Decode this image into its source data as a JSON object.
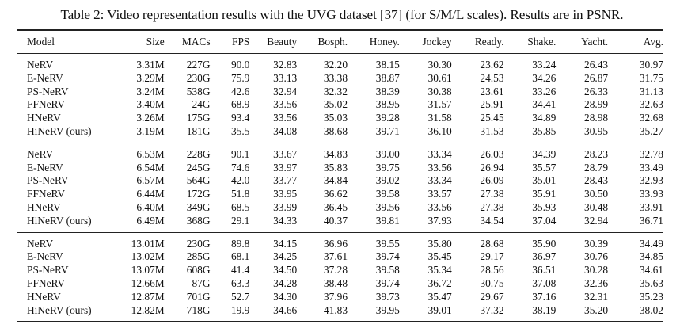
{
  "caption": "Table 2: Video representation results with the UVG dataset [37] (for S/M/L scales). Results are in PSNR.",
  "table": {
    "columns": [
      "Model",
      "Size",
      "MACs",
      "FPS",
      "Beauty",
      "Bosph.",
      "Honey.",
      "Jockey",
      "Ready.",
      "Shake.",
      "Yacht.",
      "Avg."
    ],
    "groups": [
      {
        "scale": "S",
        "rows": [
          [
            "NeRV",
            "3.31M",
            "227G",
            "90.0",
            "32.83",
            "32.20",
            "38.15",
            "30.30",
            "23.62",
            "33.24",
            "26.43",
            "30.97"
          ],
          [
            "E-NeRV",
            "3.29M",
            "230G",
            "75.9",
            "33.13",
            "33.38",
            "38.87",
            "30.61",
            "24.53",
            "34.26",
            "26.87",
            "31.75"
          ],
          [
            "PS-NeRV",
            "3.24M",
            "538G",
            "42.6",
            "32.94",
            "32.32",
            "38.39",
            "30.38",
            "23.61",
            "33.26",
            "26.33",
            "31.13"
          ],
          [
            "FFNeRV",
            "3.40M",
            "24G",
            "68.9",
            "33.56",
            "35.02",
            "38.95",
            "31.57",
            "25.91",
            "34.41",
            "28.99",
            "32.63"
          ],
          [
            "HNeRV",
            "3.26M",
            "175G",
            "93.4",
            "33.56",
            "35.03",
            "39.28",
            "31.58",
            "25.45",
            "34.89",
            "28.98",
            "32.68"
          ],
          [
            "HiNeRV (ours)",
            "3.19M",
            "181G",
            "35.5",
            "34.08",
            "38.68",
            "39.71",
            "36.10",
            "31.53",
            "35.85",
            "30.95",
            "35.27"
          ]
        ]
      },
      {
        "scale": "M",
        "rows": [
          [
            "NeRV",
            "6.53M",
            "228G",
            "90.1",
            "33.67",
            "34.83",
            "39.00",
            "33.34",
            "26.03",
            "34.39",
            "28.23",
            "32.78"
          ],
          [
            "E-NeRV",
            "6.54M",
            "245G",
            "74.6",
            "33.97",
            "35.83",
            "39.75",
            "33.56",
            "26.94",
            "35.57",
            "28.79",
            "33.49"
          ],
          [
            "PS-NeRV",
            "6.57M",
            "564G",
            "42.0",
            "33.77",
            "34.84",
            "39.02",
            "33.34",
            "26.09",
            "35.01",
            "28.43",
            "32.93"
          ],
          [
            "FFNeRV",
            "6.44M",
            "172G",
            "51.8",
            "33.95",
            "36.62",
            "39.58",
            "33.57",
            "27.38",
            "35.91",
            "30.50",
            "33.93"
          ],
          [
            "HNeRV",
            "6.40M",
            "349G",
            "68.5",
            "33.99",
            "36.45",
            "39.56",
            "33.56",
            "27.38",
            "35.93",
            "30.48",
            "33.91"
          ],
          [
            "HiNeRV (ours)",
            "6.49M",
            "368G",
            "29.1",
            "34.33",
            "40.37",
            "39.81",
            "37.93",
            "34.54",
            "37.04",
            "32.94",
            "36.71"
          ]
        ]
      },
      {
        "scale": "L",
        "rows": [
          [
            "NeRV",
            "13.01M",
            "230G",
            "89.8",
            "34.15",
            "36.96",
            "39.55",
            "35.80",
            "28.68",
            "35.90",
            "30.39",
            "34.49"
          ],
          [
            "E-NeRV",
            "13.02M",
            "285G",
            "68.1",
            "34.25",
            "37.61",
            "39.74",
            "35.45",
            "29.17",
            "36.97",
            "30.76",
            "34.85"
          ],
          [
            "PS-NeRV",
            "13.07M",
            "608G",
            "41.4",
            "34.50",
            "37.28",
            "39.58",
            "35.34",
            "28.56",
            "36.51",
            "30.28",
            "34.61"
          ],
          [
            "FFNeRV",
            "12.66M",
            "87G",
            "63.3",
            "34.28",
            "38.48",
            "39.74",
            "36.72",
            "30.75",
            "37.08",
            "32.36",
            "35.63"
          ],
          [
            "HNeRV",
            "12.87M",
            "701G",
            "52.7",
            "34.30",
            "37.96",
            "39.73",
            "35.47",
            "29.67",
            "37.16",
            "32.31",
            "35.23"
          ],
          [
            "HiNeRV (ours)",
            "12.82M",
            "718G",
            "19.9",
            "34.66",
            "41.83",
            "39.95",
            "39.01",
            "37.32",
            "38.19",
            "35.20",
            "38.02"
          ]
        ]
      }
    ],
    "bold_rule": "HiNeRV (ours) row PSNR columns (Beauty..Avg.) are bold in every group"
  }
}
